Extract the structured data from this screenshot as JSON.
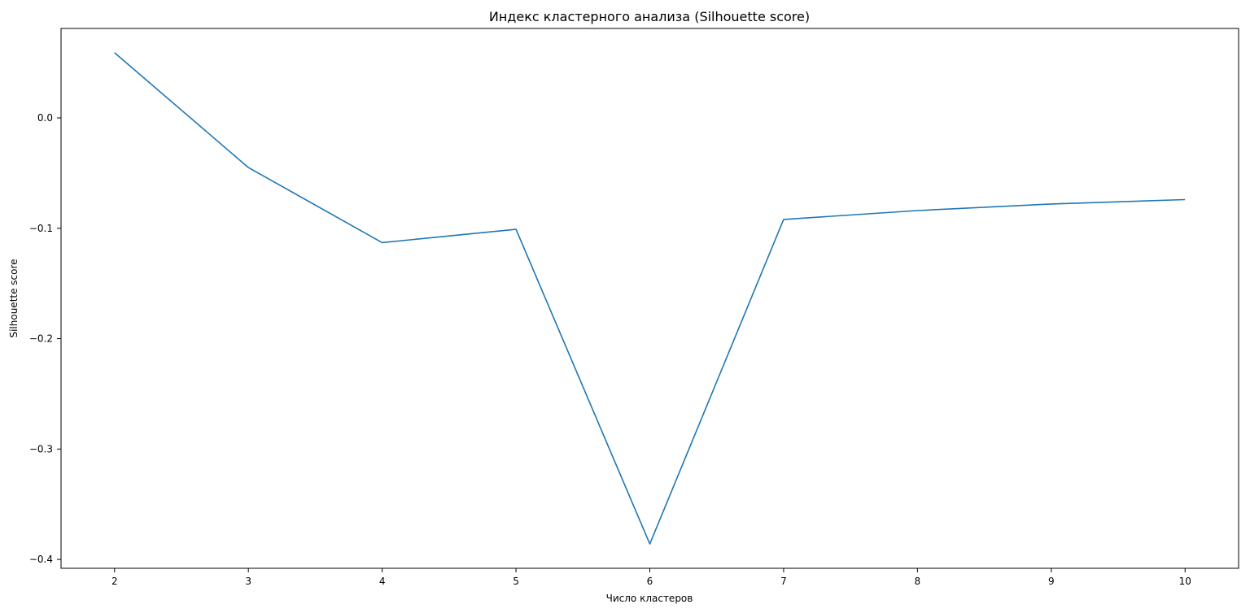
{
  "chart_data": {
    "type": "line",
    "title": "Индекс кластерного анализа (Silhouette score)",
    "xlabel": "Число кластеров",
    "ylabel": "Silhouette score",
    "x": [
      2,
      3,
      4,
      5,
      6,
      7,
      8,
      9,
      10
    ],
    "series": [
      {
        "name": "Silhouette score",
        "color": "#1f77b4",
        "values": [
          0.059,
          -0.045,
          -0.113,
          -0.101,
          -0.386,
          -0.092,
          -0.084,
          -0.078,
          -0.074
        ]
      }
    ],
    "xticks": [
      "2",
      "3",
      "4",
      "5",
      "6",
      "7",
      "8",
      "9",
      "10"
    ],
    "yticks": [
      {
        "value": 0.0,
        "label": "0.0"
      },
      {
        "value": -0.1,
        "label": "−0.1"
      },
      {
        "value": -0.2,
        "label": "−0.2"
      },
      {
        "value": -0.3,
        "label": "−0.3"
      },
      {
        "value": -0.4,
        "label": "−0.4"
      }
    ],
    "xlim": [
      1.6,
      10.4
    ],
    "ylim": [
      -0.408,
      0.081
    ],
    "grid": false,
    "legend": "none"
  }
}
